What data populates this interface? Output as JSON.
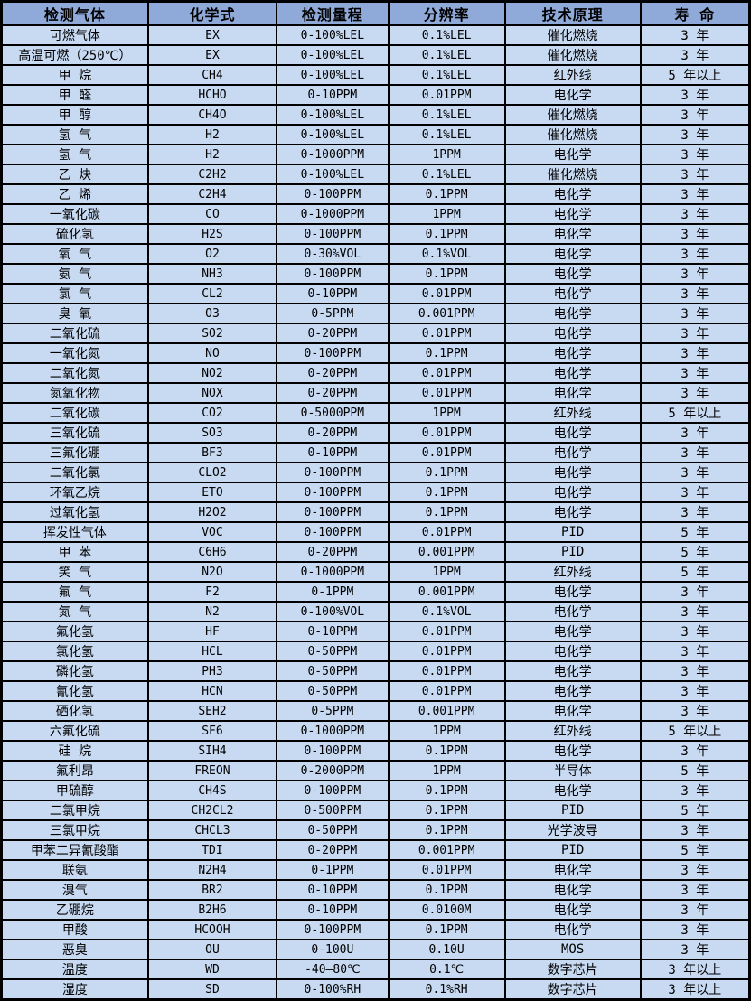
{
  "table": {
    "colors": {
      "header_bg": "#8FA9D8",
      "row_bg": "#C7DAF2",
      "border": "#000000",
      "text": "#000000"
    },
    "columns": [
      "检测气体",
      "化学式",
      "检测量程",
      "分辨率",
      "技术原理",
      "寿 命"
    ],
    "rows": [
      [
        "可燃气体",
        "EX",
        "0-100%LEL",
        "0.1%LEL",
        "催化燃烧",
        "3 年"
      ],
      [
        "高温可燃（250℃）",
        "EX",
        "0-100%LEL",
        "0.1%LEL",
        "催化燃烧",
        "3 年"
      ],
      [
        "甲 烷",
        "CH4",
        "0-100%LEL",
        "0.1%LEL",
        "红外线",
        "5 年以上"
      ],
      [
        "甲 醛",
        "HCHO",
        "0-10PPM",
        "0.01PPM",
        "电化学",
        "3 年"
      ],
      [
        "甲 醇",
        "CH4O",
        "0-100%LEL",
        "0.1%LEL",
        "催化燃烧",
        "3 年"
      ],
      [
        "氢 气",
        "H2",
        "0-100%LEL",
        "0.1%LEL",
        "催化燃烧",
        "3 年"
      ],
      [
        "氢 气",
        "H2",
        "0-1000PPM",
        "1PPM",
        "电化学",
        "3 年"
      ],
      [
        "乙 炔",
        "C2H2",
        "0-100%LEL",
        "0.1%LEL",
        "催化燃烧",
        "3 年"
      ],
      [
        "乙 烯",
        "C2H4",
        "0-100PPM",
        "0.1PPM",
        "电化学",
        "3 年"
      ],
      [
        "一氧化碳",
        "CO",
        "0-1000PPM",
        "1PPM",
        "电化学",
        "3 年"
      ],
      [
        "硫化氢",
        "H2S",
        "0-100PPM",
        "0.1PPM",
        "电化学",
        "3 年"
      ],
      [
        "氧 气",
        "O2",
        "0-30%VOL",
        "0.1%VOL",
        "电化学",
        "3 年"
      ],
      [
        "氨 气",
        "NH3",
        "0-100PPM",
        "0.1PPM",
        "电化学",
        "3 年"
      ],
      [
        "氯 气",
        "CL2",
        "0-10PPM",
        "0.01PPM",
        "电化学",
        "3 年"
      ],
      [
        "臭 氧",
        "O3",
        "0-5PPM",
        "0.001PPM",
        "电化学",
        "3 年"
      ],
      [
        "二氧化硫",
        "SO2",
        "0-20PPM",
        "0.01PPM",
        "电化学",
        "3 年"
      ],
      [
        "一氧化氮",
        "NO",
        "0-100PPM",
        "0.1PPM",
        "电化学",
        "3 年"
      ],
      [
        "二氧化氮",
        "NO2",
        "0-20PPM",
        "0.01PPM",
        "电化学",
        "3 年"
      ],
      [
        "氮氧化物",
        "NOX",
        "0-20PPM",
        "0.01PPM",
        "电化学",
        "3 年"
      ],
      [
        "二氧化碳",
        "CO2",
        "0-5000PPM",
        "1PPM",
        "红外线",
        "5 年以上"
      ],
      [
        "三氧化硫",
        "SO3",
        "0-20PPM",
        "0.01PPM",
        "电化学",
        "3 年"
      ],
      [
        "三氟化硼",
        "BF3",
        "0-10PPM",
        "0.01PPM",
        "电化学",
        "3 年"
      ],
      [
        "二氧化氯",
        "CLO2",
        "0-100PPM",
        "0.1PPM",
        "电化学",
        "3 年"
      ],
      [
        "环氧乙烷",
        "ETO",
        "0-100PPM",
        "0.1PPM",
        "电化学",
        "3 年"
      ],
      [
        "过氧化氢",
        "H2O2",
        "0-100PPM",
        "0.1PPM",
        "电化学",
        "3 年"
      ],
      [
        "挥发性气体",
        "VOC",
        "0-100PPM",
        "0.01PPM",
        "PID",
        "5 年"
      ],
      [
        "甲 苯",
        "C6H6",
        "0-20PPM",
        "0.001PPM",
        "PID",
        "5 年"
      ],
      [
        "笑 气",
        "N2O",
        "0-1000PPM",
        "1PPM",
        "红外线",
        "5 年"
      ],
      [
        "氟 气",
        "F2",
        "0-1PPM",
        "0.001PPM",
        "电化学",
        "3 年"
      ],
      [
        "氮 气",
        "N2",
        "0-100%VOL",
        "0.1%VOL",
        "电化学",
        "3 年"
      ],
      [
        "氟化氢",
        "HF",
        "0-10PPM",
        "0.01PPM",
        "电化学",
        "3 年"
      ],
      [
        "氯化氢",
        "HCL",
        "0-50PPM",
        "0.01PPM",
        "电化学",
        "3 年"
      ],
      [
        "磷化氢",
        "PH3",
        "0-50PPM",
        "0.01PPM",
        "电化学",
        "3 年"
      ],
      [
        "氰化氢",
        "HCN",
        "0-50PPM",
        "0.01PPM",
        "电化学",
        "3 年"
      ],
      [
        "硒化氢",
        "SEH2",
        "0-5PPM",
        "0.001PPM",
        "电化学",
        "3 年"
      ],
      [
        "六氟化硫",
        "SF6",
        "0-1000PPM",
        "1PPM",
        "红外线",
        "5 年以上"
      ],
      [
        "硅 烷",
        "SIH4",
        "0-100PPM",
        "0.1PPM",
        "电化学",
        "3 年"
      ],
      [
        "氟利昂",
        "FREON",
        "0-2000PPM",
        "1PPM",
        "半导体",
        "5 年"
      ],
      [
        "甲硫醇",
        "CH4S",
        "0-100PPM",
        "0.1PPM",
        "电化学",
        "3 年"
      ],
      [
        "二氯甲烷",
        "CH2CL2",
        "0-500PPM",
        "0.1PPM",
        "PID",
        "5 年"
      ],
      [
        "三氯甲烷",
        "CHCL3",
        "0-50PPM",
        "0.1PPM",
        "光学波导",
        "3 年"
      ],
      [
        "甲苯二异氰酸酯",
        "TDI",
        "0-20PPM",
        "0.001PPM",
        "PID",
        "5 年"
      ],
      [
        "联氨",
        "N2H4",
        "0-1PPM",
        "0.01PPM",
        "电化学",
        "3 年"
      ],
      [
        "溴气",
        "BR2",
        "0-10PPM",
        "0.1PPM",
        "电化学",
        "3 年"
      ],
      [
        "乙硼烷",
        "B2H6",
        "0-10PPM",
        "0.0100M",
        "电化学",
        "3 年"
      ],
      [
        "甲酸",
        "HCOOH",
        "0-100PPM",
        "0.1PPM",
        "电化学",
        "3 年"
      ],
      [
        "恶臭",
        "OU",
        "0-100U",
        "0.10U",
        "MOS",
        "3 年"
      ],
      [
        "温度",
        "WD",
        "-40—80℃",
        "0.1℃",
        "数字芯片",
        "3 年以上"
      ],
      [
        "湿度",
        "SD",
        "0-100%RH",
        "0.1%RH",
        "数字芯片",
        "3 年以上"
      ]
    ]
  }
}
